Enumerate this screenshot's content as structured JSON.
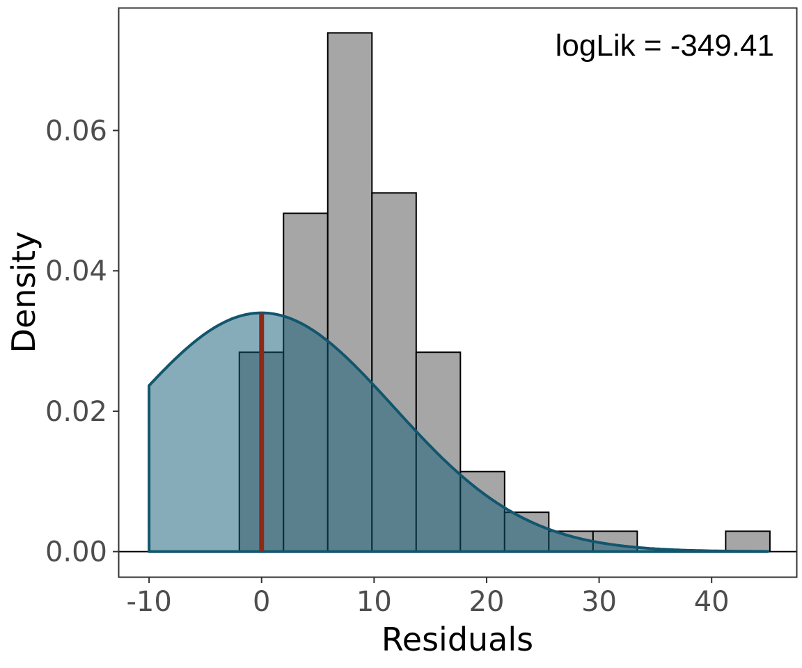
{
  "chart_data": {
    "type": "bar",
    "subtype": "histogram-with-normal-density",
    "xlabel": "Residuals",
    "ylabel": "Density",
    "annotation": "logLik = -349.41",
    "xlim": [
      -12.67,
      47.6
    ],
    "ylim": [
      -0.0036,
      0.0774
    ],
    "x_ticks": [
      -10,
      0,
      10,
      20,
      30,
      40
    ],
    "x_tick_labels": [
      "-10",
      "0",
      "10",
      "20",
      "30",
      "40"
    ],
    "y_ticks": [
      0,
      0.02,
      0.04,
      0.06
    ],
    "y_tick_labels": [
      "0.00",
      "0.02",
      "0.04",
      "0.06"
    ],
    "grid": false,
    "histogram": {
      "bin_edges": [
        -1.98,
        1.95,
        5.88,
        9.81,
        13.74,
        17.67,
        21.6,
        25.53,
        29.46,
        33.39,
        37.32,
        41.25,
        45.18
      ],
      "density": [
        0.0284,
        0.0482,
        0.0739,
        0.0511,
        0.0284,
        0.0114,
        0.0056,
        0.0029,
        0.0029,
        0,
        0,
        0.0029
      ],
      "fill": "#a6a6a6",
      "stroke": "#000000"
    },
    "normal_curve": {
      "mean": 0,
      "sd": 11.73,
      "x_range": [
        -10,
        45
      ],
      "fill": "#0f5a73",
      "fill_opacity": 0.5,
      "stroke": "#12566e"
    },
    "mean_line": {
      "x": 0,
      "color": "#8b2a16"
    },
    "zero_line": {
      "y": 0,
      "color": "#000000"
    }
  }
}
